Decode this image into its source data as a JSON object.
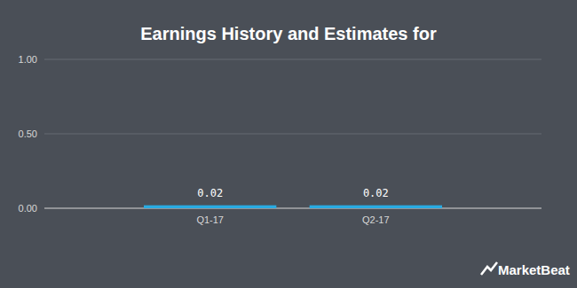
{
  "chart_data": {
    "type": "bar",
    "title": "Earnings History and Estimates for",
    "categories": [
      "Q1-17",
      "Q2-17"
    ],
    "values": [
      0.02,
      0.02
    ],
    "color": "#29abe2",
    "ylim": [
      0,
      1
    ],
    "yticks": [
      {
        "value": 0,
        "label": "0.00"
      },
      {
        "value": 0.5,
        "label": "0.50"
      },
      {
        "value": 1,
        "label": "1.00"
      }
    ],
    "grid": true,
    "data_labels": true,
    "annotations": [
      "MarketBeat"
    ]
  }
}
